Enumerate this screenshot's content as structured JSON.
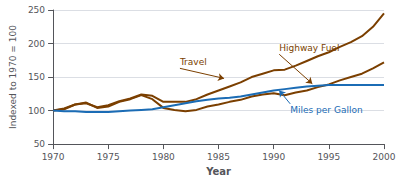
{
  "chart_data": {
    "type": "line",
    "xlabel": "Year",
    "ylabel": "Indexed to 1970 = 100",
    "x": [
      1970,
      1971,
      1972,
      1973,
      1974,
      1975,
      1976,
      1977,
      1978,
      1979,
      1980,
      1981,
      1982,
      1983,
      1984,
      1985,
      1986,
      1987,
      1988,
      1989,
      1990,
      1991,
      1992,
      1993,
      1994,
      1995,
      1996,
      1997,
      1998,
      1999,
      2000
    ],
    "series": [
      {
        "name": "Highway Fuel",
        "color": "#7B3F00",
        "values": [
          100,
          102,
          109,
          112,
          104,
          106,
          113,
          117,
          123,
          117,
          104,
          101,
          99,
          101,
          106,
          109,
          113,
          116,
          121,
          124,
          126,
          123,
          127,
          130,
          135,
          139,
          145,
          150,
          155,
          163,
          172
        ],
        "annotation": {
          "xy": [
            1993.5,
            140
          ],
          "xytext": [
            1990.5,
            184
          ]
        }
      },
      {
        "name": "Travel",
        "color": "#7B3F00",
        "values": [
          100,
          103,
          109,
          111,
          105,
          108,
          114,
          118,
          124,
          122,
          113,
          113,
          113,
          117,
          124,
          130,
          136,
          142,
          150,
          155,
          160,
          161,
          167,
          174,
          181,
          187,
          195,
          202,
          211,
          225,
          245
        ],
        "annotation": {
          "xy": [
            1985.5,
            148
          ],
          "xytext": [
            1981.5,
            163
          ]
        }
      },
      {
        "name": "Miles per Gallon",
        "color": "#1B6CB5",
        "values": [
          100,
          99,
          99,
          98,
          98,
          98,
          99,
          100,
          101,
          102,
          105,
          108,
          111,
          114,
          116,
          118,
          119,
          121,
          124,
          127,
          130,
          132,
          134,
          136,
          137,
          138,
          138,
          138,
          138,
          138,
          138
        ],
        "annotation": {
          "xy": [
            1990.5,
            130
          ],
          "xytext": [
            1991.5,
            110
          ]
        }
      }
    ],
    "xlim": [
      1970,
      2000
    ],
    "xticks": [
      1970,
      1975,
      1980,
      1985,
      1990,
      1995,
      2000
    ],
    "ylim": [
      50,
      250
    ],
    "yticks": [
      50,
      100,
      150,
      200,
      250
    ],
    "grid": true
  }
}
